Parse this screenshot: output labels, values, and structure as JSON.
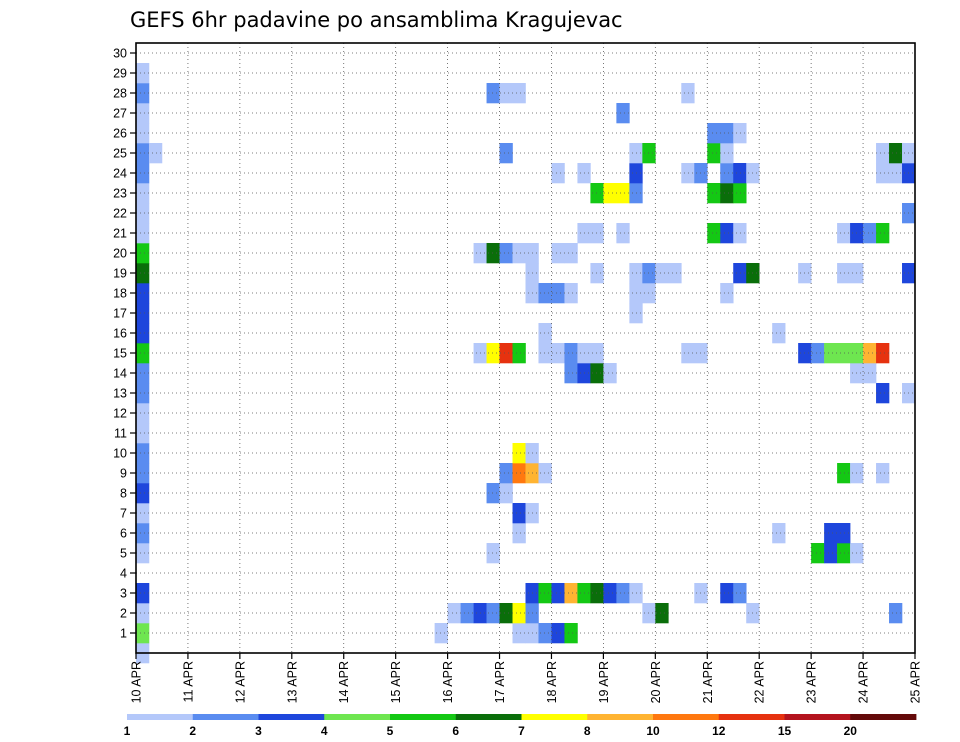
{
  "chart_data": {
    "type": "heatmap",
    "title": "GEFS 6hr padavine po ansamblima Kragujevac",
    "x_tick_labels": [
      "10 APR",
      "11 APR",
      "12 APR",
      "13 APR",
      "14 APR",
      "15 APR",
      "16 APR",
      "17 APR",
      "18 APR",
      "19 APR",
      "20 APR",
      "21 APR",
      "22 APR",
      "23 APR",
      "24 APR",
      "25 APR"
    ],
    "y_tick_labels": [
      "1",
      "2",
      "3",
      "4",
      "5",
      "6",
      "7",
      "8",
      "9",
      "10",
      "11",
      "12",
      "13",
      "14",
      "15",
      "16",
      "17",
      "18",
      "19",
      "20",
      "21",
      "22",
      "23",
      "24",
      "25",
      "26",
      "27",
      "28",
      "29",
      "30"
    ],
    "xlim_days": [
      10,
      25
    ],
    "ylim_members": [
      0,
      30
    ],
    "steps_per_day": 4,
    "grid": "dotted",
    "legend_position": "bottom",
    "legend_levels": [
      "1",
      "2",
      "3",
      "4",
      "5",
      "6",
      "7",
      "8",
      "10",
      "12",
      "15",
      "20"
    ],
    "colors": [
      "#b4c8fa",
      "#5a8cf0",
      "#1e46dc",
      "#6ee650",
      "#14c814",
      "#0a6e0a",
      "#ffff00",
      "#ffb432",
      "#ff780f",
      "#e6320f",
      "#b4141e",
      "#640a0a"
    ],
    "cells_legend": "each row: [member, step_start, step_end, color_class]; step = 6-hour interval from 10 APR 00Z",
    "cells": [
      [
        0,
        0,
        0,
        0
      ],
      [
        1,
        0,
        0,
        3
      ],
      [
        1,
        23,
        23,
        0
      ],
      [
        1,
        29,
        29,
        0
      ],
      [
        1,
        30,
        30,
        0
      ],
      [
        1,
        31,
        31,
        1
      ],
      [
        1,
        32,
        32,
        2
      ],
      [
        1,
        33,
        33,
        4
      ],
      [
        2,
        0,
        0,
        0
      ],
      [
        2,
        24,
        24,
        0
      ],
      [
        2,
        25,
        25,
        1
      ],
      [
        2,
        26,
        26,
        2
      ],
      [
        2,
        27,
        27,
        1
      ],
      [
        2,
        28,
        28,
        5
      ],
      [
        2,
        29,
        29,
        6
      ],
      [
        2,
        30,
        30,
        1
      ],
      [
        2,
        39,
        39,
        0
      ],
      [
        2,
        40,
        40,
        5
      ],
      [
        2,
        47,
        47,
        0
      ],
      [
        2,
        58,
        58,
        1
      ],
      [
        3,
        0,
        0,
        2
      ],
      [
        3,
        30,
        30,
        2
      ],
      [
        3,
        31,
        31,
        4
      ],
      [
        3,
        32,
        32,
        2
      ],
      [
        3,
        33,
        33,
        7
      ],
      [
        3,
        34,
        34,
        4
      ],
      [
        3,
        35,
        35,
        5
      ],
      [
        3,
        36,
        36,
        2
      ],
      [
        3,
        37,
        37,
        1
      ],
      [
        3,
        38,
        38,
        0
      ],
      [
        3,
        43,
        43,
        0
      ],
      [
        3,
        45,
        45,
        2
      ],
      [
        3,
        46,
        46,
        1
      ],
      [
        5,
        0,
        0,
        0
      ],
      [
        5,
        27,
        27,
        0
      ],
      [
        5,
        52,
        52,
        4
      ],
      [
        5,
        53,
        53,
        2
      ],
      [
        5,
        54,
        54,
        4
      ],
      [
        5,
        55,
        55,
        0
      ],
      [
        6,
        0,
        0,
        1
      ],
      [
        6,
        29,
        29,
        0
      ],
      [
        6,
        49,
        49,
        0
      ],
      [
        6,
        53,
        54,
        2
      ],
      [
        7,
        0,
        0,
        0
      ],
      [
        7,
        29,
        29,
        2
      ],
      [
        7,
        30,
        30,
        0
      ],
      [
        8,
        0,
        0,
        2
      ],
      [
        8,
        27,
        27,
        1
      ],
      [
        8,
        28,
        28,
        0
      ],
      [
        9,
        0,
        0,
        1
      ],
      [
        9,
        28,
        28,
        1
      ],
      [
        9,
        29,
        29,
        8
      ],
      [
        9,
        30,
        30,
        7
      ],
      [
        9,
        31,
        31,
        0
      ],
      [
        9,
        54,
        54,
        4
      ],
      [
        9,
        55,
        55,
        0
      ],
      [
        9,
        57,
        57,
        0
      ],
      [
        10,
        0,
        0,
        1
      ],
      [
        10,
        29,
        29,
        6
      ],
      [
        10,
        30,
        30,
        0
      ],
      [
        11,
        0,
        0,
        0
      ],
      [
        12,
        0,
        0,
        0
      ],
      [
        13,
        0,
        0,
        1
      ],
      [
        13,
        57,
        57,
        2
      ],
      [
        13,
        59,
        59,
        0
      ],
      [
        14,
        0,
        0,
        1
      ],
      [
        14,
        33,
        33,
        1
      ],
      [
        14,
        34,
        34,
        2
      ],
      [
        14,
        35,
        35,
        5
      ],
      [
        14,
        36,
        36,
        0
      ],
      [
        14,
        55,
        56,
        0
      ],
      [
        15,
        0,
        0,
        4
      ],
      [
        15,
        26,
        26,
        0
      ],
      [
        15,
        27,
        27,
        6
      ],
      [
        15,
        28,
        28,
        9
      ],
      [
        15,
        29,
        29,
        4
      ],
      [
        15,
        31,
        32,
        0
      ],
      [
        15,
        33,
        33,
        1
      ],
      [
        15,
        34,
        35,
        0
      ],
      [
        15,
        42,
        43,
        0
      ],
      [
        15,
        51,
        51,
        2
      ],
      [
        15,
        52,
        52,
        1
      ],
      [
        15,
        53,
        55,
        3
      ],
      [
        15,
        56,
        56,
        7
      ],
      [
        15,
        57,
        57,
        9
      ],
      [
        16,
        0,
        0,
        2
      ],
      [
        16,
        31,
        31,
        0
      ],
      [
        16,
        49,
        49,
        0
      ],
      [
        17,
        0,
        0,
        2
      ],
      [
        17,
        38,
        38,
        0
      ],
      [
        18,
        0,
        0,
        2
      ],
      [
        18,
        30,
        30,
        0
      ],
      [
        18,
        31,
        32,
        1
      ],
      [
        18,
        33,
        33,
        0
      ],
      [
        18,
        38,
        39,
        0
      ],
      [
        18,
        45,
        45,
        0
      ],
      [
        19,
        0,
        0,
        5
      ],
      [
        19,
        30,
        30,
        0
      ],
      [
        19,
        35,
        35,
        0
      ],
      [
        19,
        38,
        38,
        0
      ],
      [
        19,
        39,
        39,
        1
      ],
      [
        19,
        40,
        41,
        0
      ],
      [
        19,
        46,
        46,
        2
      ],
      [
        19,
        47,
        47,
        5
      ],
      [
        19,
        51,
        51,
        0
      ],
      [
        19,
        54,
        55,
        0
      ],
      [
        19,
        59,
        59,
        2
      ],
      [
        20,
        0,
        0,
        4
      ],
      [
        20,
        26,
        26,
        0
      ],
      [
        20,
        27,
        27,
        5
      ],
      [
        20,
        28,
        28,
        1
      ],
      [
        20,
        29,
        30,
        0
      ],
      [
        20,
        32,
        32,
        0
      ],
      [
        20,
        33,
        33,
        0
      ],
      [
        21,
        0,
        0,
        0
      ],
      [
        21,
        34,
        35,
        0
      ],
      [
        21,
        37,
        37,
        0
      ],
      [
        21,
        44,
        44,
        4
      ],
      [
        21,
        45,
        45,
        2
      ],
      [
        21,
        46,
        46,
        0
      ],
      [
        21,
        54,
        54,
        0
      ],
      [
        21,
        55,
        55,
        2
      ],
      [
        21,
        56,
        56,
        1
      ],
      [
        21,
        57,
        57,
        4
      ],
      [
        22,
        0,
        0,
        0
      ],
      [
        22,
        59,
        59,
        1
      ],
      [
        23,
        0,
        0,
        0
      ],
      [
        23,
        35,
        35,
        4
      ],
      [
        23,
        36,
        37,
        6
      ],
      [
        23,
        38,
        38,
        1
      ],
      [
        23,
        44,
        44,
        4
      ],
      [
        23,
        45,
        45,
        5
      ],
      [
        23,
        46,
        46,
        4
      ],
      [
        24,
        0,
        0,
        1
      ],
      [
        24,
        32,
        32,
        0
      ],
      [
        24,
        34,
        34,
        0
      ],
      [
        24,
        38,
        38,
        2
      ],
      [
        24,
        42,
        42,
        0
      ],
      [
        24,
        43,
        43,
        1
      ],
      [
        24,
        45,
        45,
        1
      ],
      [
        24,
        46,
        46,
        2
      ],
      [
        24,
        47,
        47,
        0
      ],
      [
        24,
        57,
        57,
        0
      ],
      [
        24,
        58,
        58,
        0
      ],
      [
        24,
        59,
        59,
        2
      ],
      [
        25,
        0,
        0,
        1
      ],
      [
        25,
        1,
        1,
        0
      ],
      [
        25,
        28,
        28,
        1
      ],
      [
        25,
        38,
        38,
        0
      ],
      [
        25,
        39,
        39,
        4
      ],
      [
        25,
        44,
        44,
        4
      ],
      [
        25,
        45,
        45,
        0
      ],
      [
        25,
        57,
        57,
        0
      ],
      [
        25,
        58,
        58,
        5
      ],
      [
        25,
        59,
        59,
        0
      ],
      [
        26,
        0,
        0,
        0
      ],
      [
        26,
        44,
        45,
        1
      ],
      [
        26,
        46,
        46,
        0
      ],
      [
        27,
        0,
        0,
        0
      ],
      [
        27,
        37,
        37,
        1
      ],
      [
        28,
        0,
        0,
        1
      ],
      [
        28,
        27,
        27,
        1
      ],
      [
        28,
        28,
        29,
        0
      ],
      [
        28,
        42,
        42,
        0
      ],
      [
        29,
        0,
        0,
        0
      ]
    ]
  }
}
